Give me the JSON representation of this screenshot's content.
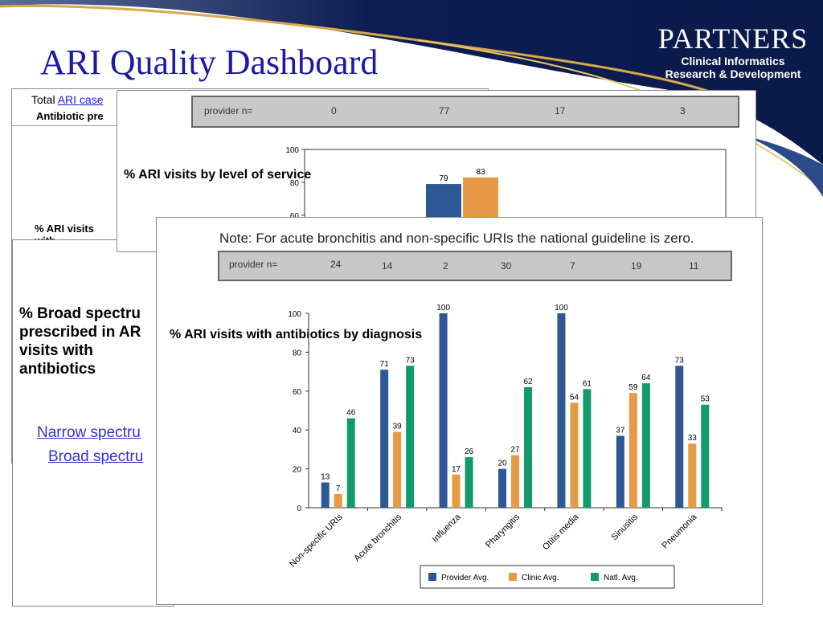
{
  "slide": {
    "title": "ARI Quality Dashboard",
    "logo": {
      "name": "PARTNERS",
      "line1": "Clinical Informatics",
      "line2": "Research & Development"
    }
  },
  "back_panel": {
    "row1_prefix": "Total ",
    "row1_link": "ARI case",
    "row2": "Antibiotic pre",
    "section_label": "% ARI visits with"
  },
  "left_panel": {
    "title": "% Broad spectru prescribed in AR visits with antibiotics",
    "link1": "Narrow spectru",
    "link2": "Broad spectru"
  },
  "level_panel": {
    "provider_label": "provider n=",
    "provider_counts": [
      "0",
      "77",
      "17",
      "3"
    ],
    "chart_label": "% ARI visits by level of service"
  },
  "diagnosis_panel": {
    "note": "Note: For acute bronchitis and non-specific URIs the national guideline is zero.",
    "provider_label": "provider n=",
    "provider_counts": [
      "24",
      "14",
      "2",
      "30",
      "7",
      "19",
      "11"
    ],
    "chart_label": "% ARI visits with antibiotics by diagnosis"
  },
  "chart_data": [
    {
      "type": "bar",
      "title": "",
      "ylim": [
        60,
        100
      ],
      "yticks": [
        60,
        80,
        100
      ],
      "grid": false,
      "visible_values": [
        79,
        83
      ],
      "colors": [
        "#2e5796",
        "#e69a45"
      ]
    },
    {
      "type": "bar",
      "title": "",
      "xlabel": "",
      "ylabel": "",
      "categories": [
        "Non-specific URIs",
        "Acute bronchitis",
        "Influenza",
        "Pharyngitis",
        "Otitis media",
        "Sinusitis",
        "Pneumonia"
      ],
      "series": [
        {
          "name": "Provider Avg.",
          "color": "#2e5796",
          "values": [
            13,
            71,
            100,
            20,
            100,
            37,
            73
          ]
        },
        {
          "name": "Clinic Avg.",
          "color": "#e69a45",
          "values": [
            7,
            39,
            17,
            27,
            54,
            59,
            33
          ]
        },
        {
          "name": "Natl. Avg.",
          "color": "#129a6c",
          "values": [
            46,
            73,
            26,
            62,
            61,
            64,
            53
          ]
        }
      ],
      "ylim": [
        0,
        100
      ],
      "yticks": [
        0,
        20,
        40,
        60,
        80,
        100
      ],
      "grid": false,
      "legend": "bottom"
    }
  ]
}
